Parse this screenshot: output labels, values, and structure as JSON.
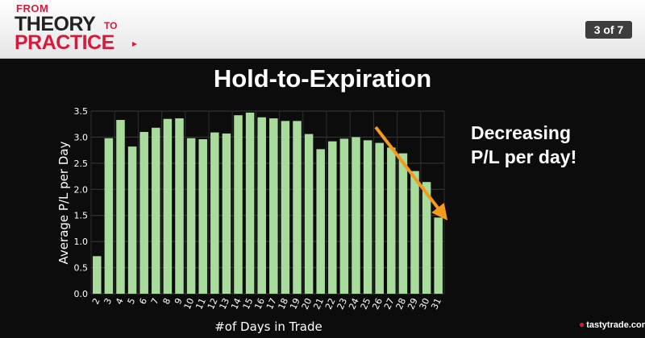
{
  "header": {
    "logo": {
      "line1": "FROM",
      "line2": "THEORY",
      "line2b": "TO",
      "line3": "PRACTICE"
    },
    "slide_counter": "3 of 7"
  },
  "annotation": {
    "line1": "Decreasing",
    "line2": "P/L per day!"
  },
  "brand": "tastytrade.com",
  "colors": {
    "bar": "#a9dc9c",
    "arrow": "#f59a1b",
    "background": "#0c0c0c",
    "accent": "#d71a3c"
  },
  "chart_data": {
    "type": "bar",
    "title": "Hold-to-Expiration",
    "xlabel": "#of Days in Trade",
    "ylabel": "Average P/L per Day",
    "ylim": [
      0,
      3.5
    ],
    "yticks": [
      "0.0",
      "0.5",
      "1.0",
      "1.5",
      "2.0",
      "2.5",
      "3.0",
      "3.5"
    ],
    "grid": true,
    "categories": [
      "2",
      "3",
      "4",
      "5",
      "6",
      "7",
      "8",
      "9",
      "10",
      "11",
      "12",
      "13",
      "14",
      "15",
      "16",
      "17",
      "18",
      "19",
      "20",
      "21",
      "22",
      "23",
      "24",
      "25",
      "26",
      "27",
      "28",
      "29",
      "30",
      "31"
    ],
    "values": [
      0.72,
      2.98,
      3.33,
      2.82,
      3.1,
      3.18,
      3.35,
      3.36,
      2.98,
      2.96,
      3.09,
      3.07,
      3.42,
      3.47,
      3.38,
      3.36,
      3.31,
      3.31,
      3.06,
      2.77,
      2.92,
      2.97,
      3.0,
      2.94,
      2.89,
      2.8,
      2.69,
      2.35,
      2.14,
      1.46
    ]
  }
}
